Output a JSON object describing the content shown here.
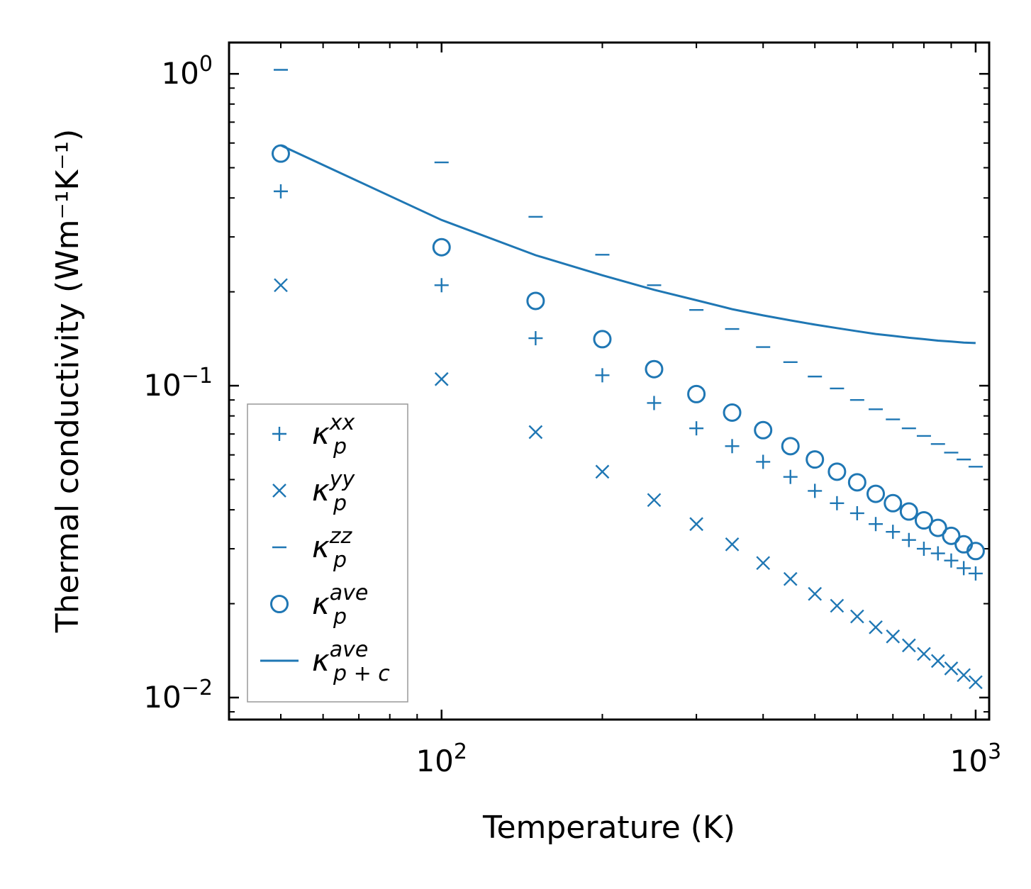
{
  "chart_data": {
    "type": "scatter",
    "title": "",
    "xlabel": "Temperature (K)",
    "ylabel": "Thermal conductivity (Wm⁻¹K⁻¹)",
    "xscale": "log",
    "yscale": "log",
    "xlim": [
      40,
      1060
    ],
    "ylim": [
      0.0085,
      1.26
    ],
    "x_ticks": [
      {
        "value": 100,
        "base": "10",
        "exp": "2"
      },
      {
        "value": 1000,
        "base": "10",
        "exp": "3"
      }
    ],
    "y_ticks": [
      {
        "value": 0.01,
        "base": "10",
        "exp": "−2"
      },
      {
        "value": 0.1,
        "base": "10",
        "exp": "−1"
      },
      {
        "value": 1,
        "base": "10",
        "exp": "0"
      }
    ],
    "legend_position": "lower-left",
    "color": "#1f77b4",
    "x": [
      50,
      100,
      150,
      200,
      250,
      300,
      350,
      400,
      450,
      500,
      550,
      600,
      650,
      700,
      750,
      800,
      850,
      900,
      950,
      1000
    ],
    "series": [
      {
        "name": "kxx",
        "legend_base": "κ",
        "legend_sub": "p",
        "legend_sup": "xx",
        "marker": "plus",
        "values": [
          0.42,
          0.21,
          0.142,
          0.108,
          0.088,
          0.073,
          0.064,
          0.057,
          0.051,
          0.046,
          0.042,
          0.039,
          0.036,
          0.034,
          0.032,
          0.03,
          0.029,
          0.0275,
          0.026,
          0.025
        ]
      },
      {
        "name": "kyy",
        "legend_base": "κ",
        "legend_sub": "p",
        "legend_sup": "yy",
        "marker": "x",
        "values": [
          0.21,
          0.105,
          0.071,
          0.053,
          0.043,
          0.036,
          0.031,
          0.027,
          0.024,
          0.0215,
          0.0197,
          0.0182,
          0.0168,
          0.0157,
          0.0147,
          0.0138,
          0.0131,
          0.0124,
          0.0118,
          0.0112
        ]
      },
      {
        "name": "kzz",
        "legend_base": "κ",
        "legend_sub": "p",
        "legend_sup": "zz",
        "marker": "hline",
        "values": [
          1.03,
          0.52,
          0.348,
          0.263,
          0.21,
          0.175,
          0.152,
          0.133,
          0.119,
          0.107,
          0.098,
          0.09,
          0.084,
          0.078,
          0.073,
          0.069,
          0.065,
          0.061,
          0.058,
          0.055
        ]
      },
      {
        "name": "kave",
        "legend_base": "κ",
        "legend_sub": "p",
        "legend_sup": "ave",
        "marker": "circle",
        "values": [
          0.555,
          0.278,
          0.187,
          0.141,
          0.113,
          0.094,
          0.082,
          0.072,
          0.064,
          0.058,
          0.053,
          0.049,
          0.045,
          0.042,
          0.0395,
          0.037,
          0.035,
          0.033,
          0.031,
          0.0295
        ]
      },
      {
        "name": "kpc",
        "legend_base": "κ",
        "legend_sub": "p + c",
        "legend_sup": "ave",
        "marker": "line",
        "values": [
          0.59,
          0.34,
          0.262,
          0.226,
          0.203,
          0.188,
          0.176,
          0.168,
          0.162,
          0.157,
          0.153,
          0.1495,
          0.1465,
          0.1445,
          0.1425,
          0.141,
          0.1395,
          0.1385,
          0.1375,
          0.137
        ]
      }
    ]
  }
}
